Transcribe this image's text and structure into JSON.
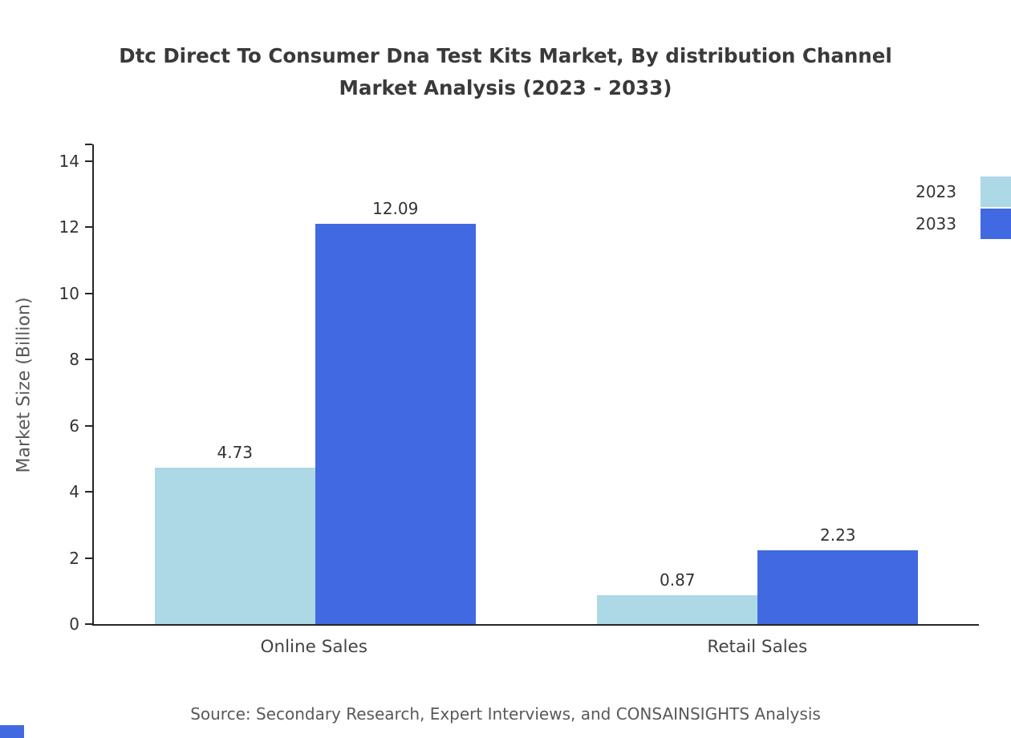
{
  "header": {
    "title_line1": "Dtc Direct To Consumer Dna Test Kits Market, By distribution Channel",
    "title_line2": "Market Analysis (2023 - 2033)"
  },
  "chart_data": {
    "type": "bar",
    "title": "Dtc Direct To Consumer Dna Test Kits Market, By distribution Channel Market Analysis (2023 - 2033)",
    "categories": [
      "Online Sales",
      "Retail Sales"
    ],
    "series": [
      {
        "name": "2023",
        "color": "#add8e6",
        "values": [
          4.73,
          0.87
        ]
      },
      {
        "name": "2033",
        "color": "#4169e1",
        "values": [
          12.09,
          2.23
        ]
      }
    ],
    "xlabel": "",
    "ylabel": "Market Size (Billion)",
    "ylim": [
      0,
      14
    ],
    "yticks": [
      0,
      2,
      4,
      6,
      8,
      10,
      12,
      14
    ],
    "grid": false,
    "legend_position": "top-right"
  },
  "footer": {
    "source": "Source: Secondary Research, Expert Interviews, and CONSAINSIGHTS Analysis"
  },
  "colors": {
    "series_2023": "#add8e6",
    "series_2033": "#4169e1",
    "axis": "#262626",
    "title_text": "#3a3a3a",
    "muted_text": "#595959"
  }
}
